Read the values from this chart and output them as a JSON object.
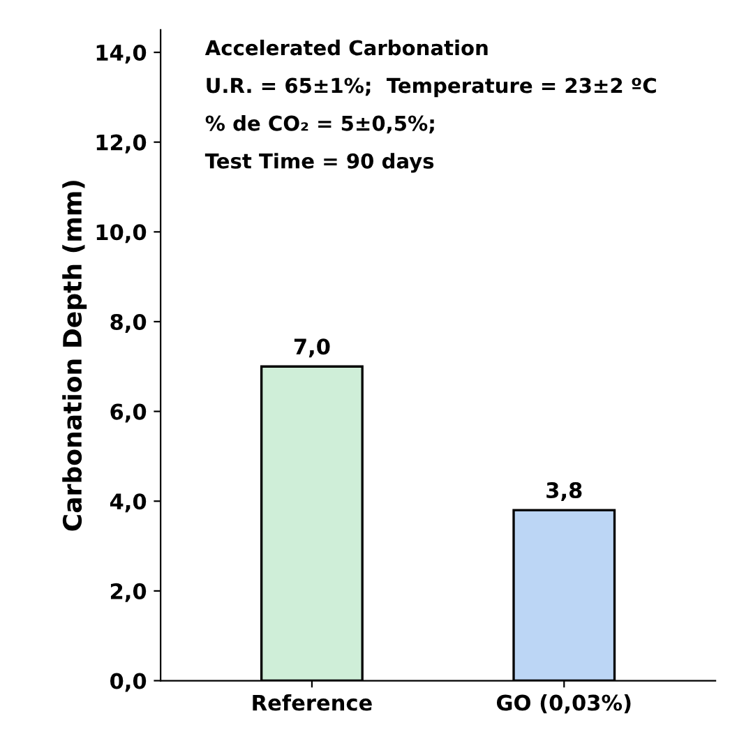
{
  "chart_data": {
    "type": "bar",
    "ylabel": "Carbonation Depth (mm)",
    "categories": [
      "Reference",
      "GO (0,03%)"
    ],
    "values": [
      7.0,
      3.8
    ],
    "colors": [
      "#cfeed8",
      "#bcd6f5"
    ],
    "value_labels": [
      "7,0",
      "3,8"
    ],
    "ylim": [
      0,
      14.5
    ],
    "yticks": [
      {
        "value": 0,
        "label": "0,0"
      },
      {
        "value": 2,
        "label": "2,0"
      },
      {
        "value": 4,
        "label": "4,0"
      },
      {
        "value": 6,
        "label": "6,0"
      },
      {
        "value": 8,
        "label": "8,0"
      },
      {
        "value": 10,
        "label": "10,0"
      },
      {
        "value": 12,
        "label": "12,0"
      },
      {
        "value": 14,
        "label": "14,0"
      }
    ],
    "grid": false,
    "annotations": [
      "Accelerated Carbonation",
      "U.R. = 65±1%;  Temperature = 23±2 ºC",
      "% de CO₂ = 5±0,5%;",
      "Test Time = 90 days"
    ]
  }
}
